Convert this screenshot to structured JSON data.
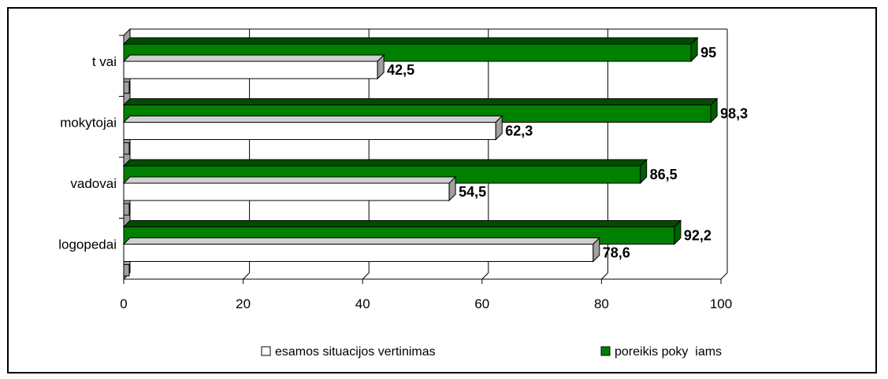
{
  "chart_data": {
    "type": "bar",
    "orientation": "horizontal",
    "categories": [
      "t vai",
      "mokytojai",
      "vadovai",
      "logopedai"
    ],
    "series": [
      {
        "name": "esamos situacijos vertinimas",
        "values": [
          42.5,
          62.3,
          54.5,
          78.6
        ],
        "labels": [
          "42,5",
          "62,3",
          "54,5",
          "78,6"
        ],
        "color": "#ffffff"
      },
      {
        "name": "poreikis poky  iams",
        "values": [
          95,
          98.3,
          86.5,
          92.2
        ],
        "labels": [
          "95",
          "98,3",
          "86,5",
          "92,2"
        ],
        "color": "#008000"
      }
    ],
    "xlim": [
      0,
      100
    ],
    "xticks": [
      "0",
      "20",
      "40",
      "60",
      "80",
      "100"
    ],
    "grid": true,
    "legend": "bottom"
  }
}
